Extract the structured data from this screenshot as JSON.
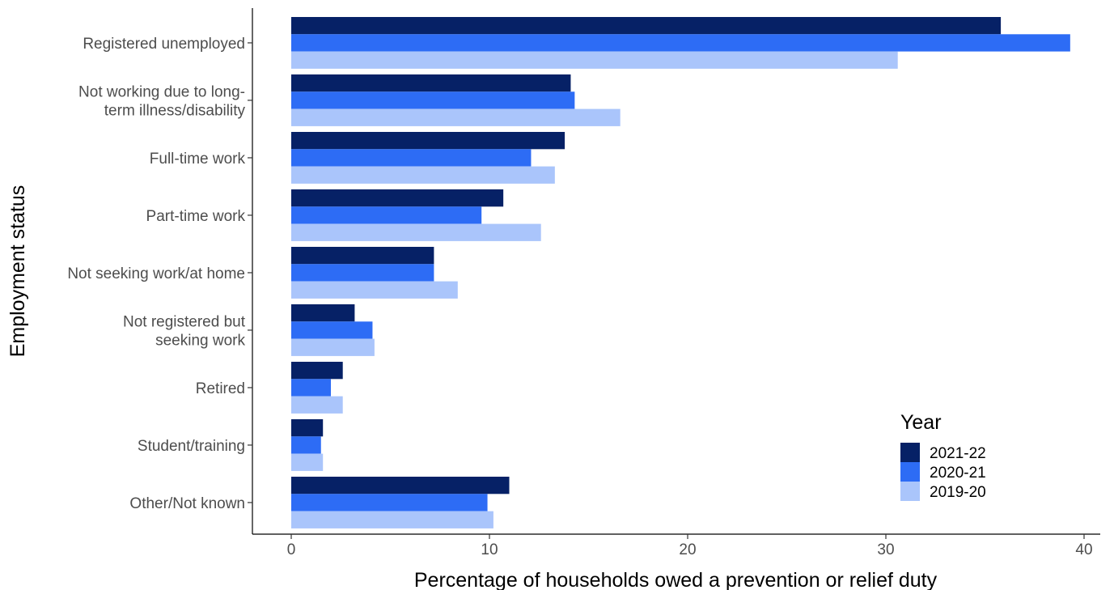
{
  "chart_data": {
    "type": "bar",
    "orientation": "horizontal",
    "title": "",
    "xlabel": "Percentage of households owed a prevention or relief duty",
    "ylabel": "Employment status",
    "xlim": [
      -2,
      40.5
    ],
    "xticks": [
      0,
      10,
      20,
      30,
      40
    ],
    "grid": false,
    "legend": {
      "title": "Year",
      "position": "bottom-right"
    },
    "categories": [
      "Registered unemployed",
      "Not working due to long-term illness/disability",
      "Full-time work",
      "Part-time work",
      "Not seeking work/at home",
      "Not registered but seeking work",
      "Retired",
      "Student/training",
      "Other/Not known"
    ],
    "category_lines": [
      [
        "Registered unemployed"
      ],
      [
        "Not working due to long-",
        "term illness/disability"
      ],
      [
        "Full-time work"
      ],
      [
        "Part-time work"
      ],
      [
        "Not seeking work/at home"
      ],
      [
        "Not registered but",
        "seeking work"
      ],
      [
        "Retired"
      ],
      [
        "Student/training"
      ],
      [
        "Other/Not known"
      ]
    ],
    "series": [
      {
        "name": "2021-22",
        "color": "#062166",
        "values": [
          35.8,
          14.1,
          13.8,
          10.7,
          7.2,
          3.2,
          2.6,
          1.6,
          11.0
        ]
      },
      {
        "name": "2020-21",
        "color": "#2d6cf5",
        "values": [
          39.3,
          14.3,
          12.1,
          9.6,
          7.2,
          4.1,
          2.0,
          1.5,
          9.9
        ]
      },
      {
        "name": "2019-20",
        "color": "#aac5fb",
        "values": [
          30.6,
          16.6,
          13.3,
          12.6,
          8.4,
          4.2,
          2.6,
          1.6,
          10.2
        ]
      }
    ]
  }
}
